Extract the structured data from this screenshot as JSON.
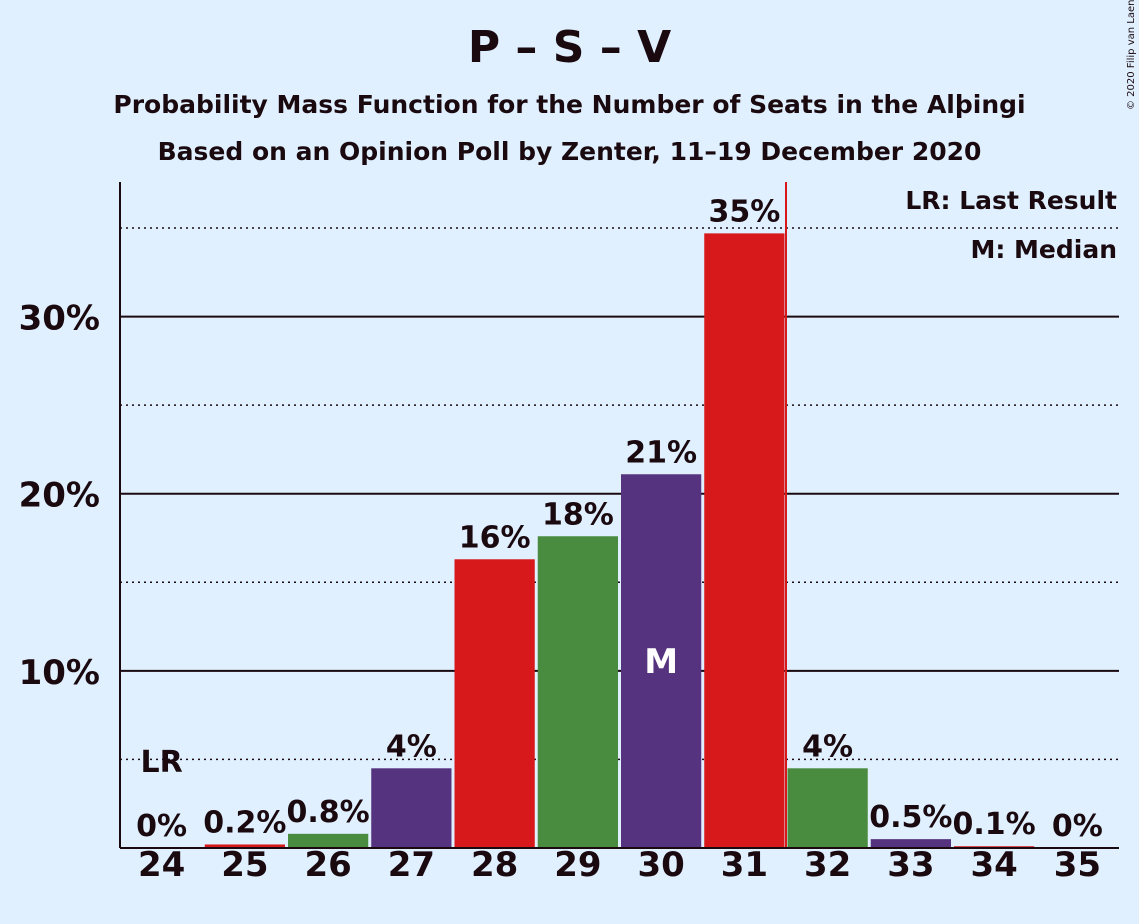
{
  "title": "P – S – V",
  "subtitle": "Probability Mass Function for the Number of Seats in the Alþingi",
  "subtitle2": "Based on an Opinion Poll by Zenter, 11–19 December 2020",
  "credit": "© 2020 Filip van Laenen",
  "legend": {
    "last_result": "LR: Last Result",
    "median": "M: Median"
  },
  "colors": {
    "background": "#e0f0ff",
    "red": "#d7191c",
    "green": "#4a8c3f",
    "purple": "#55337f",
    "text": "#1a0a10"
  },
  "chart_data": {
    "type": "bar",
    "categories": [
      "24",
      "25",
      "26",
      "27",
      "28",
      "29",
      "30",
      "31",
      "32",
      "33",
      "34",
      "35"
    ],
    "values": [
      0,
      0.2,
      0.8,
      4.5,
      16.3,
      17.6,
      21.1,
      34.7,
      4.5,
      0.5,
      0.1,
      0
    ],
    "data_labels": [
      "0%",
      "0.2%",
      "0.8%",
      "4%",
      "16%",
      "18%",
      "21%",
      "35%",
      "4%",
      "0.5%",
      "0.1%",
      "0%"
    ],
    "bar_colors": [
      "red",
      "red",
      "green",
      "purple",
      "red",
      "green",
      "purple",
      "red",
      "green",
      "purple",
      "red",
      "green"
    ],
    "ylim": [
      0,
      37.6
    ],
    "y_ticks": [
      10,
      20,
      30
    ],
    "y_tick_labels": [
      "10%",
      "20%",
      "30%"
    ],
    "minor_gridlines": [
      5,
      15,
      25,
      35
    ],
    "last_result": {
      "category": "24",
      "label": "LR"
    },
    "median": {
      "category": "30",
      "label": "M"
    },
    "majority_line_after": "31",
    "legend_position": "top-right"
  }
}
